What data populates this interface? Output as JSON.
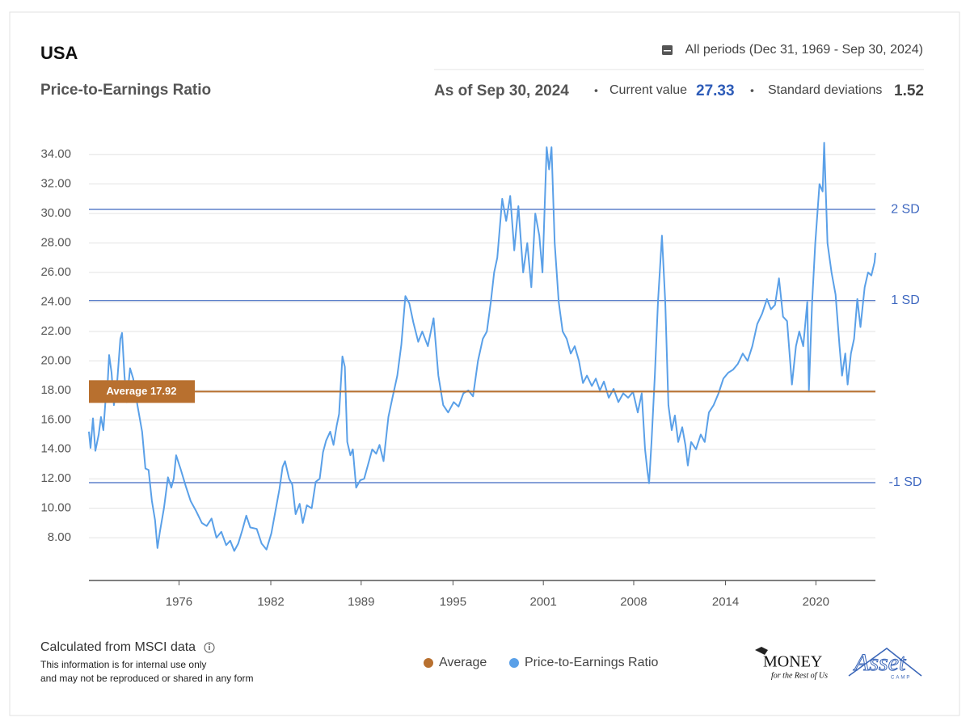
{
  "header": {
    "title": "USA",
    "subtitle": "Price-to-Earnings Ratio",
    "period": "All periods (Dec 31, 1969 - Sep 30, 2024)",
    "as_of": "As of Sep 30, 2024",
    "current_label": "Current value",
    "current_value": 27.33,
    "sd_label": "Standard deviations",
    "sd_value": 1.52
  },
  "chart_data": {
    "type": "line",
    "x": [
      1969.92,
      1970.03,
      1970.2,
      1970.37,
      1970.6,
      1970.76,
      1970.93,
      1971.1,
      1971.21,
      1971.33,
      1971.5,
      1971.66,
      1971.89,
      1972.11,
      1972.23,
      1972.4,
      1972.56,
      1972.79,
      1973.01,
      1973.3,
      1973.63,
      1973.86,
      1974.08,
      1974.31,
      1974.53,
      1974.7,
      1974.87,
      1975.15,
      1975.43,
      1975.66,
      1975.83,
      1976.0,
      1976.33,
      1976.67,
      1977.01,
      1977.4,
      1977.8,
      1978.13,
      1978.47,
      1978.81,
      1979.15,
      1979.49,
      1979.77,
      1980.05,
      1980.33,
      1980.61,
      1980.89,
      1981.17,
      1981.62,
      1981.96,
      1982.3,
      1982.64,
      1982.92,
      1983.2,
      1983.42,
      1983.59,
      1983.88,
      1984.1,
      1984.33,
      1984.61,
      1984.83,
      1985.11,
      1985.45,
      1985.73,
      1986.01,
      1986.24,
      1986.46,
      1986.74,
      1986.97,
      1987.19,
      1987.36,
      1987.59,
      1987.76,
      1987.93,
      1988.15,
      1988.32,
      1988.55,
      1988.83,
      1989.11,
      1989.39,
      1989.67,
      1989.95,
      1990.18,
      1990.46,
      1990.8,
      1991.08,
      1991.42,
      1991.7,
      1991.98,
      1992.26,
      1992.54,
      1992.88,
      1993.16,
      1993.55,
      1993.95,
      1994.28,
      1994.62,
      1994.96,
      1995.35,
      1995.69,
      1996.03,
      1996.37,
      1996.7,
      1997.04,
      1997.38,
      1997.66,
      1997.94,
      1998.17,
      1998.39,
      1998.73,
      1999.01,
      1999.29,
      1999.57,
      1999.86,
      2000.19,
      2000.48,
      2000.76,
      2001.04,
      2001.32,
      2001.54,
      2001.83,
      2002.0,
      2002.17,
      2002.39,
      2002.67,
      2002.95,
      2003.23,
      2003.51,
      2003.79,
      2004.08,
      2004.36,
      2004.64,
      2004.98,
      2005.26,
      2005.54,
      2005.82,
      2006.16,
      2006.5,
      2006.83,
      2007.17,
      2007.51,
      2007.85,
      2008.18,
      2008.46,
      2008.69,
      2008.86,
      2008.97,
      2009.14,
      2009.37,
      2009.59,
      2009.87,
      2010.1,
      2010.32,
      2010.55,
      2010.77,
      2011.0,
      2011.28,
      2011.5,
      2011.67,
      2011.9,
      2012.24,
      2012.57,
      2012.85,
      2013.14,
      2013.47,
      2013.81,
      2014.15,
      2014.49,
      2014.82,
      2015.16,
      2015.5,
      2015.84,
      2016.17,
      2016.51,
      2016.85,
      2017.19,
      2017.47,
      2017.75,
      2018.03,
      2018.31,
      2018.59,
      2018.93,
      2019.21,
      2019.44,
      2019.72,
      2020.0,
      2020.11,
      2020.34,
      2020.56,
      2020.85,
      2021.07,
      2021.18,
      2021.41,
      2021.69,
      2021.97,
      2022.25,
      2022.42,
      2022.65,
      2022.81,
      2023.04,
      2023.26,
      2023.49,
      2023.71,
      2024.0,
      2024.24,
      2024.47,
      2024.69,
      2024.75
    ],
    "series": [
      {
        "name": "Price-to-Earnings Ratio",
        "color": "#5aa0e8",
        "values": [
          15.2,
          14.1,
          16.1,
          13.9,
          15.0,
          16.2,
          15.3,
          17.6,
          18.2,
          20.4,
          19.2,
          17.0,
          18.6,
          21.5,
          21.9,
          19.0,
          17.2,
          19.5,
          18.8,
          17.0,
          15.2,
          12.7,
          12.6,
          10.5,
          9.2,
          7.3,
          8.4,
          10.0,
          12.1,
          11.4,
          12.0,
          13.6,
          12.6,
          11.5,
          10.5,
          9.8,
          9.0,
          8.8,
          9.3,
          8.0,
          8.4,
          7.5,
          7.8,
          7.1,
          7.6,
          8.5,
          9.5,
          8.7,
          8.6,
          7.6,
          7.2,
          8.3,
          9.8,
          11.3,
          12.8,
          13.2,
          12.0,
          11.6,
          9.6,
          10.3,
          9.0,
          10.2,
          10.0,
          11.8,
          12.0,
          13.8,
          14.6,
          15.2,
          14.3,
          15.6,
          16.4,
          20.3,
          19.6,
          14.5,
          13.6,
          14.0,
          11.4,
          11.9,
          12.0,
          13.0,
          14.0,
          13.7,
          14.3,
          13.2,
          16.2,
          17.5,
          19.0,
          21.1,
          24.4,
          23.9,
          22.6,
          21.3,
          22.0,
          21.0,
          22.9,
          19.0,
          17.0,
          16.5,
          17.2,
          16.9,
          17.8,
          18.0,
          17.6,
          20.0,
          21.5,
          22.0,
          24.0,
          26.0,
          27.0,
          31.0,
          29.5,
          31.2,
          27.5,
          30.5,
          26.0,
          28.0,
          25.0,
          30.0,
          28.5,
          26.0,
          34.5,
          33.0,
          34.5,
          28.0,
          24.0,
          22.0,
          21.5,
          20.5,
          21.0,
          20.0,
          18.5,
          19.0,
          18.3,
          18.8,
          18.0,
          18.6,
          17.5,
          18.1,
          17.2,
          17.8,
          17.5,
          17.9,
          16.5,
          17.8,
          14.0,
          12.5,
          11.7,
          14.5,
          19.0,
          24.0,
          28.5,
          24.0,
          17.0,
          15.3,
          16.3,
          14.5,
          15.5,
          14.3,
          12.9,
          14.5,
          14.0,
          15.0,
          14.5,
          16.5,
          17.0,
          17.8,
          18.8,
          19.2,
          19.4,
          19.8,
          20.5,
          20.0,
          21.0,
          22.5,
          23.2,
          24.2,
          23.5,
          23.8,
          25.6,
          23.0,
          22.7,
          18.4,
          21.0,
          22.0,
          21.0,
          24.0,
          18.0,
          24.0,
          28.0,
          32.0,
          31.5,
          34.8,
          28.0,
          26.0,
          24.5,
          21.0,
          19.0,
          20.5,
          18.4,
          20.5,
          21.5,
          24.2,
          22.3,
          25.0,
          26.0,
          25.8,
          26.7,
          27.33
        ]
      }
    ],
    "average": {
      "name": "Average",
      "label": "Average 17.92",
      "value": 17.92,
      "color": "#b8702f"
    },
    "sd_lines": [
      {
        "label": "2 SD",
        "value": 30.28
      },
      {
        "label": "1 SD",
        "value": 24.1
      },
      {
        "label": "-1 SD",
        "value": 11.74
      }
    ],
    "sd_color": "#3f68c0",
    "xlim": [
      1969.92,
      2024.75
    ],
    "xticks": [
      {
        "value": 1976.2,
        "label": "1976"
      },
      {
        "value": 1982.6,
        "label": "1982"
      },
      {
        "value": 1988.9,
        "label": "1989"
      },
      {
        "value": 1995.3,
        "label": "1995"
      },
      {
        "value": 2001.6,
        "label": "2001"
      },
      {
        "value": 2007.9,
        "label": "2008"
      },
      {
        "value": 2014.3,
        "label": "2014"
      },
      {
        "value": 2020.6,
        "label": "2020"
      }
    ],
    "ylim": [
      5.1,
      35
    ],
    "yticks": [
      {
        "value": 8,
        "label": "8.00"
      },
      {
        "value": 10,
        "label": "10.00"
      },
      {
        "value": 12,
        "label": "12.00"
      },
      {
        "value": 14,
        "label": "14.00"
      },
      {
        "value": 16,
        "label": "16.00"
      },
      {
        "value": 18,
        "label": "18.00"
      },
      {
        "value": 20,
        "label": "20.00"
      },
      {
        "value": 22,
        "label": "22.00"
      },
      {
        "value": 24,
        "label": "24.00"
      },
      {
        "value": 26,
        "label": "26.00"
      },
      {
        "value": 28,
        "label": "28.00"
      },
      {
        "value": 30,
        "label": "30.00"
      },
      {
        "value": 32,
        "label": "32.00"
      },
      {
        "value": 34,
        "label": "34.00"
      }
    ],
    "grid": true
  },
  "footer": {
    "source": "Calculated from MSCI data",
    "note": [
      "This information is for internal use only",
      "and may not be reproduced or shared in any form"
    ],
    "logo_money": "MONEY",
    "logo_money_sub": "for the Rest of Us",
    "logo_asset": "Asset",
    "logo_asset_sub": "CAMP"
  }
}
